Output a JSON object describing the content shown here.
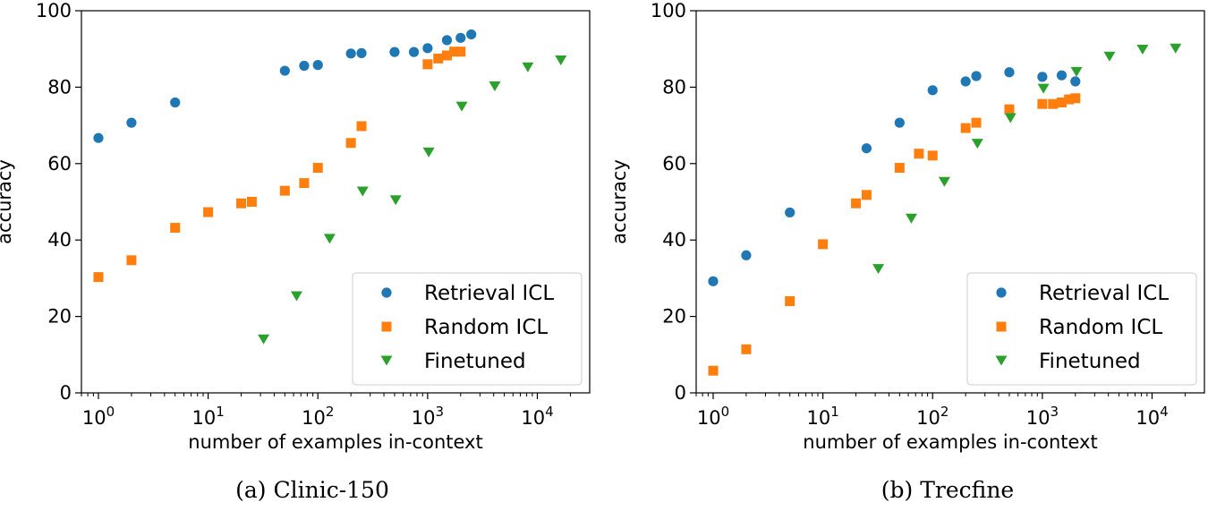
{
  "chart_data": [
    {
      "type": "scatter",
      "caption": "(a) Clinic-150",
      "xlabel": "number of examples in-context",
      "ylabel": "accuracy",
      "xscale": "log",
      "xlim": [
        0.7,
        30000
      ],
      "ylim": [
        0,
        100
      ],
      "xticks": [
        1,
        10,
        100,
        1000,
        10000
      ],
      "xtick_labels": [
        {
          "base": "10",
          "exp": "0"
        },
        {
          "base": "10",
          "exp": "1"
        },
        {
          "base": "10",
          "exp": "2"
        },
        {
          "base": "10",
          "exp": "3"
        },
        {
          "base": "10",
          "exp": "4"
        }
      ],
      "yticks": [
        0,
        20,
        40,
        60,
        80,
        100
      ],
      "legend_position": "lower-right",
      "series": [
        {
          "name": "Retrieval ICL",
          "marker": "circle",
          "color": "#1f77b4",
          "x": [
            1,
            2,
            5,
            50,
            75,
            100,
            200,
            250,
            500,
            750,
            1000,
            1500,
            2000,
            2500
          ],
          "y": [
            66.7,
            70.7,
            76.0,
            84.3,
            85.6,
            85.8,
            88.8,
            88.9,
            89.2,
            89.2,
            90.2,
            92.3,
            92.9,
            93.8
          ]
        },
        {
          "name": "Random ICL",
          "marker": "square",
          "color": "#ff7f0e",
          "x": [
            1,
            2,
            5,
            10,
            20,
            25,
            50,
            75,
            100,
            200,
            250,
            1000,
            1250,
            1500,
            1750,
            2000
          ],
          "y": [
            30.3,
            34.7,
            43.2,
            47.3,
            49.6,
            50.0,
            52.9,
            54.9,
            58.9,
            65.4,
            69.8,
            86.0,
            87.5,
            88.3,
            89.3,
            89.3
          ]
        },
        {
          "name": "Finetuned",
          "marker": "triangle-down",
          "color": "#2ca02c",
          "x": [
            32,
            64,
            128,
            256,
            512,
            1024,
            2048,
            4096,
            8192,
            16384
          ],
          "y": [
            14.0,
            25.3,
            40.3,
            52.7,
            50.4,
            62.9,
            74.9,
            80.2,
            85.2,
            87.0
          ]
        }
      ]
    },
    {
      "type": "scatter",
      "caption": "(b) Trecfine",
      "xlabel": "number of examples in-context",
      "ylabel": "accuracy",
      "xscale": "log",
      "xlim": [
        0.7,
        30000
      ],
      "ylim": [
        0,
        100
      ],
      "xticks": [
        1,
        10,
        100,
        1000,
        10000
      ],
      "xtick_labels": [
        {
          "base": "10",
          "exp": "0"
        },
        {
          "base": "10",
          "exp": "1"
        },
        {
          "base": "10",
          "exp": "2"
        },
        {
          "base": "10",
          "exp": "3"
        },
        {
          "base": "10",
          "exp": "4"
        }
      ],
      "yticks": [
        0,
        20,
        40,
        60,
        80,
        100
      ],
      "legend_position": "lower-right",
      "series": [
        {
          "name": "Retrieval ICL",
          "marker": "circle",
          "color": "#1f77b4",
          "x": [
            1,
            2,
            5,
            25,
            50,
            100,
            200,
            250,
            500,
            1000,
            1500,
            2000
          ],
          "y": [
            29.2,
            36.0,
            47.2,
            64.0,
            70.7,
            79.2,
            81.5,
            82.9,
            83.9,
            82.7,
            83.1,
            81.5
          ]
        },
        {
          "name": "Random ICL",
          "marker": "square",
          "color": "#ff7f0e",
          "x": [
            1,
            2,
            5,
            10,
            20,
            25,
            50,
            75,
            100,
            200,
            250,
            500,
            1000,
            1250,
            1500,
            1750,
            2000
          ],
          "y": [
            5.8,
            11.4,
            24.0,
            38.9,
            49.6,
            51.8,
            58.9,
            62.6,
            62.1,
            69.3,
            70.7,
            74.2,
            75.6,
            75.6,
            76.0,
            76.8,
            77.1
          ]
        },
        {
          "name": "Finetuned",
          "marker": "triangle-down",
          "color": "#2ca02c",
          "x": [
            32,
            64,
            128,
            256,
            512,
            1024,
            2048,
            4096,
            8192,
            16384
          ],
          "y": [
            32.4,
            45.6,
            55.2,
            65.2,
            71.9,
            79.6,
            84.0,
            88.0,
            89.8,
            90.1
          ]
        }
      ]
    }
  ]
}
